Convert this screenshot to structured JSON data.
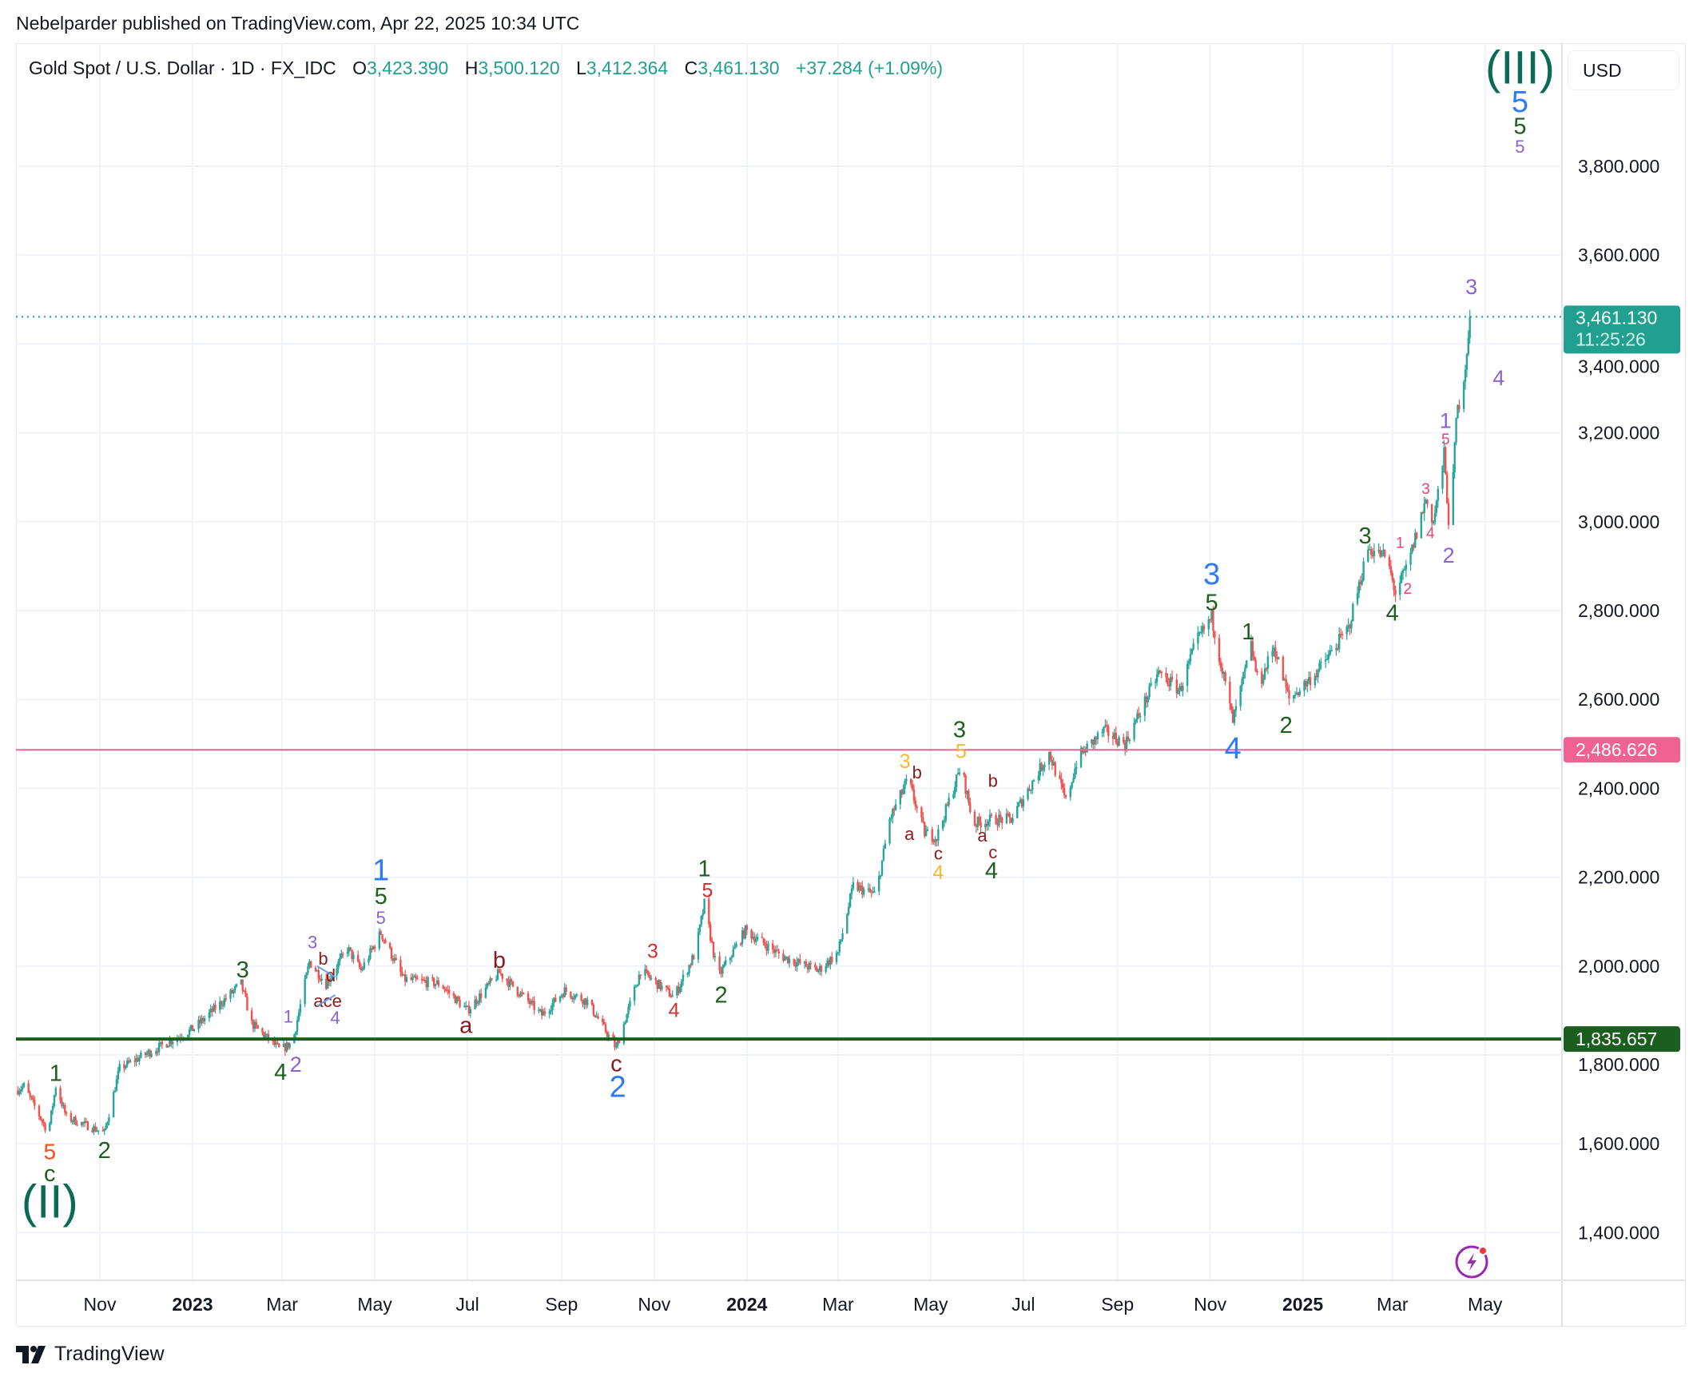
{
  "publisher_line": "Nebelparder published on TradingView.com, Apr 22, 2025 10:34 UTC",
  "legend": {
    "symbol": "Gold Spot / U.S. Dollar · 1D · FX_IDC",
    "open_label": "O",
    "open": "3,423.390",
    "high_label": "H",
    "high": "3,500.120",
    "low_label": "L",
    "low": "3,412.364",
    "close_label": "C",
    "close": "3,461.130",
    "change": "+37.284 (+1.09%)"
  },
  "currency_button": "USD",
  "branding": "TradingView",
  "colors": {
    "up": "#26a69a",
    "down": "#ef5350",
    "grid": "#f0f3fa",
    "last_price": "#22a08f",
    "pink_level": "#f06292",
    "green_level": "#1b5e20",
    "cycle": "#0b6b57",
    "primary": "#2f7bf5",
    "intermediate": "#1f5e1f",
    "minor": "#d32f2f",
    "correction": "#8b1a1a",
    "minute": "#8a63d2",
    "minor_alt": "#f9b92f",
    "subminor": "#f4511e",
    "minuette": "#ec407a"
  },
  "chart_data": {
    "type": "candlestick",
    "title": "Gold Spot / U.S. Dollar · 1D · FX_IDC",
    "base_date": "2022-11-01",
    "ylim": [
      1290,
      4130
    ],
    "y_ticks": [
      "1,400.000",
      "1,600.000",
      "1,800.000",
      "2,000.000",
      "2,200.000",
      "2,400.000",
      "2,600.000",
      "2,800.000",
      "3,000.000",
      "3,200.000",
      "3,400.000",
      "3,600.000",
      "3,800.000"
    ],
    "y_tick_values": [
      1400,
      1600,
      1800,
      2000,
      2200,
      2400,
      2600,
      2800,
      3000,
      3200,
      3400,
      3600,
      3800
    ],
    "x_ticks": [
      {
        "label": "Nov",
        "day": 0,
        "bold": false
      },
      {
        "label": "2023",
        "day": 61,
        "bold": true
      },
      {
        "label": "Mar",
        "day": 120,
        "bold": false
      },
      {
        "label": "May",
        "day": 181,
        "bold": false
      },
      {
        "label": "Jul",
        "day": 242,
        "bold": false
      },
      {
        "label": "Sep",
        "day": 304,
        "bold": false
      },
      {
        "label": "Nov",
        "day": 365,
        "bold": false
      },
      {
        "label": "2024",
        "day": 426,
        "bold": true
      },
      {
        "label": "Mar",
        "day": 486,
        "bold": false
      },
      {
        "label": "May",
        "day": 547,
        "bold": false
      },
      {
        "label": "Jul",
        "day": 608,
        "bold": false
      },
      {
        "label": "Sep",
        "day": 670,
        "bold": false
      },
      {
        "label": "Nov",
        "day": 731,
        "bold": false
      },
      {
        "label": "2025",
        "day": 792,
        "bold": true
      },
      {
        "label": "Mar",
        "day": 851,
        "bold": false
      },
      {
        "label": "May",
        "day": 912,
        "bold": false
      }
    ],
    "price_path": [
      [
        -55,
        1720
      ],
      [
        -50,
        1730
      ],
      [
        -34,
        1625
      ],
      [
        -29,
        1730
      ],
      [
        -22,
        1660
      ],
      [
        3,
        1625
      ],
      [
        13,
        1770
      ],
      [
        62,
        1860
      ],
      [
        93,
        1960
      ],
      [
        100,
        1870
      ],
      [
        119,
        1810
      ],
      [
        127,
        1830
      ],
      [
        138,
        2010
      ],
      [
        149,
        1960
      ],
      [
        163,
        2040
      ],
      [
        172,
        1990
      ],
      [
        185,
        2075
      ],
      [
        200,
        1970
      ],
      [
        224,
        1960
      ],
      [
        242,
        1900
      ],
      [
        263,
        1985
      ],
      [
        291,
        1890
      ],
      [
        306,
        1945
      ],
      [
        321,
        1920
      ],
      [
        330,
        1870
      ],
      [
        340,
        1815
      ],
      [
        356,
        1990
      ],
      [
        378,
        1930
      ],
      [
        392,
        2030
      ],
      [
        398,
        2140
      ],
      [
        407,
        1975
      ],
      [
        425,
        2080
      ],
      [
        450,
        2020
      ],
      [
        473,
        1990
      ],
      [
        486,
        2030
      ],
      [
        496,
        2180
      ],
      [
        511,
        2160
      ],
      [
        520,
        2330
      ],
      [
        532,
        2420
      ],
      [
        543,
        2300
      ],
      [
        551,
        2290
      ],
      [
        567,
        2450
      ],
      [
        575,
        2320
      ],
      [
        588,
        2330
      ],
      [
        600,
        2330
      ],
      [
        625,
        2480
      ],
      [
        636,
        2370
      ],
      [
        644,
        2470
      ],
      [
        661,
        2530
      ],
      [
        675,
        2500
      ],
      [
        697,
        2660
      ],
      [
        711,
        2620
      ],
      [
        722,
        2730
      ],
      [
        732,
        2785
      ],
      [
        740,
        2650
      ],
      [
        746,
        2550
      ],
      [
        758,
        2720
      ],
      [
        763,
        2630
      ],
      [
        773,
        2720
      ],
      [
        783,
        2600
      ],
      [
        801,
        2660
      ],
      [
        822,
        2760
      ],
      [
        835,
        2940
      ],
      [
        847,
        2920
      ],
      [
        853,
        2840
      ],
      [
        861,
        2900
      ],
      [
        873,
        3050
      ],
      [
        878,
        3000
      ],
      [
        885,
        3150
      ],
      [
        889,
        2960
      ],
      [
        893,
        3230
      ],
      [
        899,
        3350
      ],
      [
        902,
        3461.13
      ]
    ],
    "last_price": {
      "value": 3461.13,
      "label": "3,461.130",
      "countdown": "11:25:26"
    },
    "levels": [
      {
        "value": 2486.626,
        "label": "2,486.626",
        "color_key": "pink_level"
      },
      {
        "value": 1835.657,
        "label": "1,835.657",
        "color_key": "green_level"
      }
    ],
    "annotations": [
      {
        "text": "(II)",
        "degree": "cycle",
        "day": -33,
        "price": 1462
      },
      {
        "text": "c",
        "degree": "intermediate",
        "day": -33,
        "price": 1530
      },
      {
        "text": "5",
        "degree": "subminor",
        "day": -33,
        "price": 1579
      },
      {
        "text": "1",
        "degree": "intermediate",
        "day": -29,
        "price": 1755
      },
      {
        "text": "2",
        "degree": "intermediate",
        "day": 3,
        "price": 1582
      },
      {
        "text": "3",
        "degree": "intermediate",
        "day": 94,
        "price": 1988
      },
      {
        "text": "4",
        "degree": "intermediate",
        "day": 119,
        "price": 1758
      },
      {
        "text": "1",
        "degree": "minute-sm",
        "day": 124,
        "price": 1883
      },
      {
        "text": "2",
        "degree": "minute",
        "day": 129,
        "price": 1775
      },
      {
        "text": "3",
        "degree": "minute-sm",
        "day": 140,
        "price": 2030
      },
      {
        "text": "b",
        "degree": "correction-sm",
        "day": 147,
        "price": 2012
      },
      {
        "text": "d",
        "degree": "correction-sm",
        "day": 152,
        "price": 1998
      },
      {
        "text": "ace",
        "degree": "correction-sm",
        "day": 150,
        "price": 1914
      },
      {
        "text": "4",
        "degree": "minute-sm",
        "day": 155,
        "price": 1885
      },
      {
        "text": "1",
        "degree": "primary",
        "day": 185,
        "price": 2211
      },
      {
        "text": "5",
        "degree": "intermediate",
        "day": 185,
        "price": 2154
      },
      {
        "text": "5",
        "degree": "minute-sm",
        "day": 185,
        "price": 2105
      },
      {
        "text": "a",
        "degree": "correction",
        "day": 241,
        "price": 1863
      },
      {
        "text": "b",
        "degree": "correction",
        "day": 263,
        "price": 2010
      },
      {
        "text": "c",
        "degree": "correction",
        "day": 340,
        "price": 1777
      },
      {
        "text": "2",
        "degree": "primary",
        "day": 341,
        "price": 1724
      },
      {
        "text": "3",
        "degree": "minor",
        "day": 364,
        "price": 2030
      },
      {
        "text": "4",
        "degree": "minor",
        "day": 378,
        "price": 1897
      },
      {
        "text": "1",
        "degree": "intermediate",
        "day": 398,
        "price": 2216
      },
      {
        "text": "5",
        "degree": "minor",
        "day": 400,
        "price": 2167
      },
      {
        "text": "2",
        "degree": "intermediate",
        "day": 409,
        "price": 1932
      },
      {
        "text": "3",
        "degree": "minor_alt",
        "day": 530,
        "price": 2458
      },
      {
        "text": "b",
        "degree": "correction-sm",
        "day": 538,
        "price": 2433
      },
      {
        "text": "a",
        "degree": "correction-sm",
        "day": 533,
        "price": 2294
      },
      {
        "text": "c",
        "degree": "correction-sm",
        "day": 552,
        "price": 2250
      },
      {
        "text": "4",
        "degree": "minor_alt",
        "day": 552,
        "price": 2208
      },
      {
        "text": "3",
        "degree": "intermediate",
        "day": 566,
        "price": 2529
      },
      {
        "text": "5",
        "degree": "minor_alt",
        "day": 567,
        "price": 2480
      },
      {
        "text": "b",
        "degree": "correction-sm",
        "day": 588,
        "price": 2414
      },
      {
        "text": "a",
        "degree": "correction-sm",
        "day": 581,
        "price": 2289
      },
      {
        "text": "c",
        "degree": "correction-sm",
        "day": 588,
        "price": 2255
      },
      {
        "text": "4",
        "degree": "intermediate",
        "day": 587,
        "price": 2211
      },
      {
        "text": "3",
        "degree": "primary",
        "day": 732,
        "price": 2877
      },
      {
        "text": "5",
        "degree": "intermediate",
        "day": 732,
        "price": 2815
      },
      {
        "text": "1",
        "degree": "intermediate",
        "day": 756,
        "price": 2749
      },
      {
        "text": "4",
        "degree": "primary",
        "day": 746,
        "price": 2485
      },
      {
        "text": "2",
        "degree": "intermediate",
        "day": 781,
        "price": 2539
      },
      {
        "text": "3",
        "degree": "intermediate",
        "day": 833,
        "price": 2965
      },
      {
        "text": "4",
        "degree": "intermediate",
        "day": 851,
        "price": 2791
      },
      {
        "text": "1",
        "degree": "minuette",
        "day": 856,
        "price": 2950
      },
      {
        "text": "2",
        "degree": "minuette",
        "day": 861,
        "price": 2847
      },
      {
        "text": "3",
        "degree": "minuette",
        "day": 873,
        "price": 3072
      },
      {
        "text": "4",
        "degree": "minuette",
        "day": 876,
        "price": 2972
      },
      {
        "text": "5",
        "degree": "minuette",
        "day": 886,
        "price": 3183
      },
      {
        "text": "1",
        "degree": "minute",
        "day": 886,
        "price": 3224
      },
      {
        "text": "2",
        "degree": "minute",
        "day": 888,
        "price": 2921
      },
      {
        "text": "3",
        "degree": "minute",
        "day": 903,
        "price": 3525
      },
      {
        "text": "4",
        "degree": "minute",
        "day": 921,
        "price": 3320
      },
      {
        "text": "(III)",
        "degree": "cycle",
        "day": 935,
        "price": 4012
      },
      {
        "text": "5",
        "degree": "primary",
        "day": 935,
        "price": 3941
      },
      {
        "text": "5",
        "degree": "intermediate",
        "day": 935,
        "price": 3888
      },
      {
        "text": "5",
        "degree": "minute-sm",
        "day": 935,
        "price": 3841
      }
    ]
  }
}
